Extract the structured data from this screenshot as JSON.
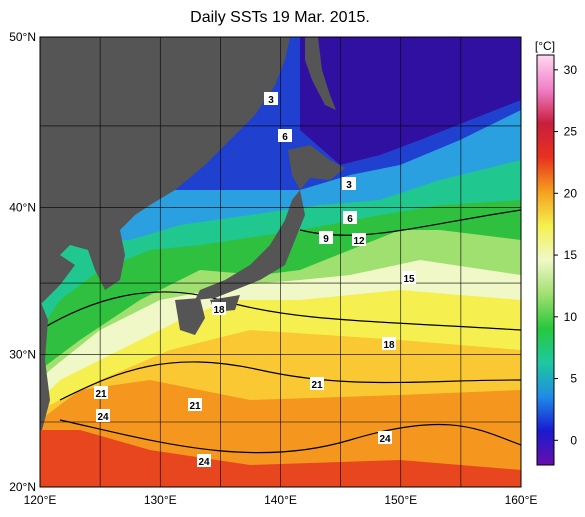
{
  "title": "Daily SSTs 19 Mar. 2015.",
  "lat_labels": [
    "50°N",
    "40°N",
    "30°N",
    "20°N"
  ],
  "lat_values": [
    50,
    40,
    30,
    20
  ],
  "lon_labels": [
    "120°E",
    "130°E",
    "140°E",
    "150°E",
    "160°E"
  ],
  "lon_values": [
    120,
    130,
    140,
    150,
    160
  ],
  "contour_labels": [
    3,
    6,
    3,
    6,
    9,
    12,
    15,
    18,
    18,
    21,
    21,
    21,
    24,
    24,
    24
  ],
  "colorbar": {
    "unit": "[°C]",
    "lim": [
      -2,
      31.2
    ],
    "ticks": [
      0,
      5,
      10,
      15,
      20,
      25,
      30
    ],
    "colors": [
      "#6a0dad",
      "#1a1ad0",
      "#1e8ce6",
      "#1ec8a0",
      "#28c83c",
      "#a0e070",
      "#f0f8c8",
      "#f5f050",
      "#f5a01e",
      "#e8321e",
      "#c81e3c",
      "#f080c8",
      "#ffd8f0"
    ]
  }
}
